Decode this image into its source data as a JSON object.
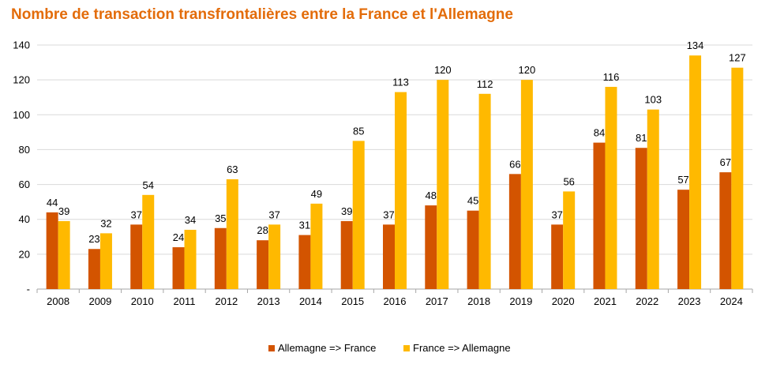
{
  "chart_data": {
    "type": "bar",
    "title": "Nombre de transaction transfrontalières entre la France et l'Allemagne",
    "xlabel": "",
    "ylabel": "",
    "categories": [
      "2008",
      "2009",
      "2010",
      "2011",
      "2012",
      "2013",
      "2014",
      "2015",
      "2016",
      "2017",
      "2018",
      "2019",
      "2020",
      "2021",
      "2022",
      "2023",
      "2024"
    ],
    "series": [
      {
        "name": "Allemagne => France",
        "color": "#D35400",
        "values": [
          44,
          23,
          37,
          24,
          35,
          28,
          31,
          39,
          37,
          48,
          45,
          66,
          37,
          84,
          81,
          57,
          67
        ]
      },
      {
        "name": "France => Allemagne",
        "color": "#FFB900",
        "values": [
          39,
          32,
          54,
          34,
          63,
          37,
          49,
          85,
          113,
          120,
          112,
          120,
          56,
          116,
          103,
          134,
          127
        ]
      }
    ],
    "ylim": [
      0,
      140
    ],
    "yticks": [
      0,
      20,
      40,
      60,
      80,
      100,
      120,
      140
    ],
    "ytick_labels": [
      "-",
      "20",
      "40",
      "60",
      "80",
      "100",
      "120",
      "140"
    ],
    "grid": true,
    "legend": "bottom-center",
    "data_labels": true
  }
}
